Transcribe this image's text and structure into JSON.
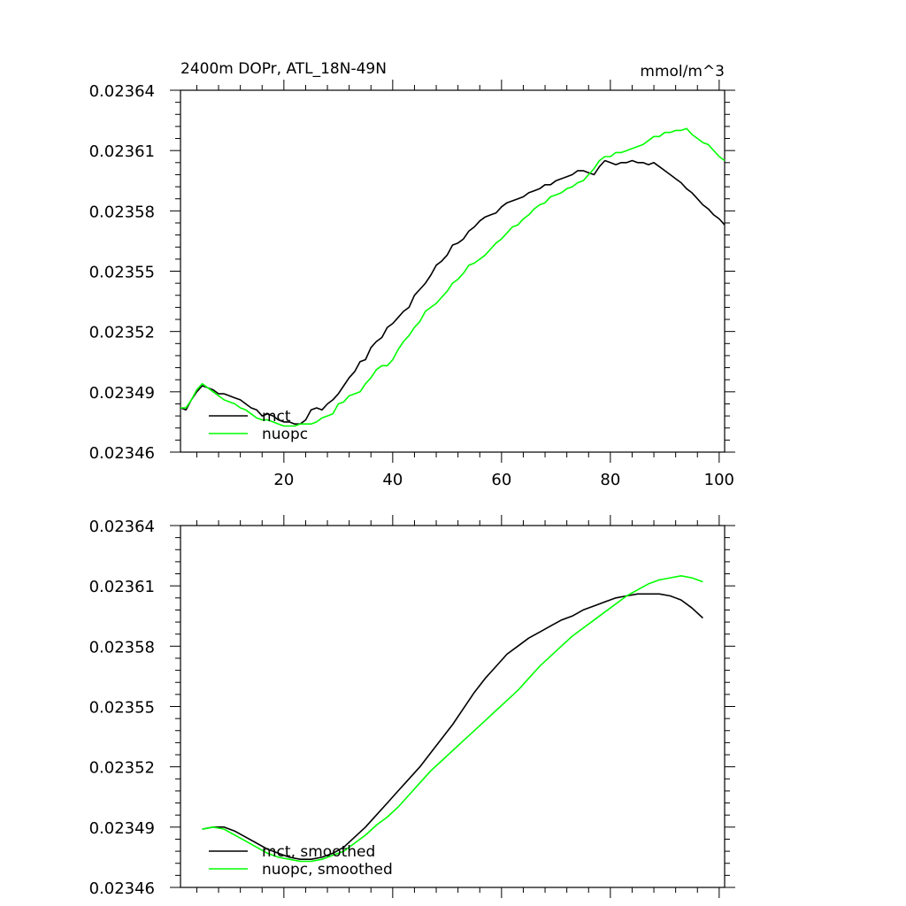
{
  "chart_data": [
    {
      "type": "line",
      "title_left": "2400m DOPr, ATL_18N-49N",
      "title_right": "mmol/m^3",
      "xlabel": "",
      "ylabel": "",
      "xlim": [
        1,
        101
      ],
      "ylim": [
        0.02346,
        0.02364
      ],
      "x_ticks": [
        20,
        40,
        60,
        80,
        100
      ],
      "x_tick_labels": [
        "20",
        "40",
        "60",
        "80",
        "100"
      ],
      "y_ticks": [
        0.02346,
        0.02349,
        0.02352,
        0.02355,
        0.02358,
        0.02361,
        0.02364
      ],
      "y_tick_labels": [
        "0.02346",
        "0.02349",
        "0.02352",
        "0.02355",
        "0.02358",
        "0.02361",
        "0.02364"
      ],
      "legend_position": "bottom-left",
      "series": [
        {
          "name": "mct",
          "color": "#000000",
          "x": [
            1,
            2,
            3,
            4,
            5,
            6,
            7,
            8,
            9,
            10,
            11,
            12,
            13,
            14,
            15,
            16,
            17,
            18,
            19,
            20,
            21,
            22,
            23,
            24,
            25,
            26,
            27,
            28,
            29,
            30,
            31,
            32,
            33,
            34,
            35,
            36,
            37,
            38,
            39,
            40,
            41,
            42,
            43,
            44,
            45,
            46,
            47,
            48,
            49,
            50,
            51,
            52,
            53,
            54,
            55,
            56,
            57,
            58,
            59,
            60,
            61,
            62,
            63,
            64,
            65,
            66,
            67,
            68,
            69,
            70,
            71,
            72,
            73,
            74,
            75,
            76,
            77,
            78,
            79,
            80,
            81,
            82,
            83,
            84,
            85,
            86,
            87,
            88,
            89,
            90,
            91,
            92,
            93,
            94,
            95,
            96,
            97,
            98,
            99,
            100,
            101
          ],
          "y": [
            0.023482,
            0.023481,
            0.023486,
            0.02349,
            0.023493,
            0.023492,
            0.023491,
            0.023489,
            0.023489,
            0.023488,
            0.023487,
            0.023486,
            0.023484,
            0.023482,
            0.023481,
            0.023478,
            0.023479,
            0.023478,
            0.023476,
            0.023475,
            0.023475,
            0.023474,
            0.023474,
            0.023476,
            0.023481,
            0.023482,
            0.023481,
            0.023484,
            0.023486,
            0.023489,
            0.023493,
            0.023497,
            0.0235,
            0.023505,
            0.023506,
            0.023512,
            0.023515,
            0.023517,
            0.023522,
            0.023524,
            0.023527,
            0.02353,
            0.023532,
            0.023538,
            0.023541,
            0.023544,
            0.023548,
            0.023553,
            0.023555,
            0.023558,
            0.023563,
            0.023564,
            0.023566,
            0.02357,
            0.023572,
            0.023575,
            0.023577,
            0.023578,
            0.023579,
            0.023582,
            0.023584,
            0.023585,
            0.023586,
            0.023587,
            0.023589,
            0.02359,
            0.023591,
            0.023593,
            0.023593,
            0.023595,
            0.023596,
            0.023597,
            0.023598,
            0.0236,
            0.0236,
            0.023599,
            0.023598,
            0.023602,
            0.023605,
            0.023604,
            0.023603,
            0.023604,
            0.023604,
            0.023605,
            0.023604,
            0.023604,
            0.023603,
            0.023604,
            0.023602,
            0.0236,
            0.023598,
            0.023596,
            0.023594,
            0.023591,
            0.023589,
            0.023586,
            0.023583,
            0.023581,
            0.023578,
            0.023576,
            0.023573
          ]
        },
        {
          "name": "nuopc",
          "color": "#00ff00",
          "x": [
            1,
            2,
            3,
            4,
            5,
            6,
            7,
            8,
            9,
            10,
            11,
            12,
            13,
            14,
            15,
            16,
            17,
            18,
            19,
            20,
            21,
            22,
            23,
            24,
            25,
            26,
            27,
            28,
            29,
            30,
            31,
            32,
            33,
            34,
            35,
            36,
            37,
            38,
            39,
            40,
            41,
            42,
            43,
            44,
            45,
            46,
            47,
            48,
            49,
            50,
            51,
            52,
            53,
            54,
            55,
            56,
            57,
            58,
            59,
            60,
            61,
            62,
            63,
            64,
            65,
            66,
            67,
            68,
            69,
            70,
            71,
            72,
            73,
            74,
            75,
            76,
            77,
            78,
            79,
            80,
            81,
            82,
            83,
            84,
            85,
            86,
            87,
            88,
            89,
            90,
            91,
            92,
            93,
            94,
            95,
            96,
            97,
            98,
            99,
            100,
            101
          ],
          "y": [
            0.023482,
            0.023482,
            0.023486,
            0.023491,
            0.023494,
            0.023492,
            0.02349,
            0.023488,
            0.023486,
            0.023485,
            0.023484,
            0.023482,
            0.023481,
            0.023479,
            0.023477,
            0.023476,
            0.023476,
            0.023475,
            0.023474,
            0.023473,
            0.023473,
            0.023473,
            0.023474,
            0.023474,
            0.023474,
            0.023475,
            0.023477,
            0.023478,
            0.023479,
            0.023484,
            0.023485,
            0.023488,
            0.023489,
            0.02349,
            0.023494,
            0.023497,
            0.023501,
            0.023503,
            0.023503,
            0.023506,
            0.023511,
            0.023515,
            0.023518,
            0.023522,
            0.023525,
            0.02353,
            0.023532,
            0.023534,
            0.023537,
            0.02354,
            0.023544,
            0.023546,
            0.023549,
            0.023553,
            0.023554,
            0.023556,
            0.023558,
            0.023561,
            0.023564,
            0.023566,
            0.023569,
            0.023572,
            0.023573,
            0.023576,
            0.023578,
            0.023581,
            0.023583,
            0.023584,
            0.023587,
            0.023588,
            0.023589,
            0.023591,
            0.023592,
            0.023594,
            0.023595,
            0.023598,
            0.023601,
            0.023605,
            0.023607,
            0.023607,
            0.023609,
            0.023609,
            0.02361,
            0.023611,
            0.023612,
            0.023613,
            0.023615,
            0.023617,
            0.023617,
            0.023619,
            0.023619,
            0.02362,
            0.02362,
            0.023621,
            0.023618,
            0.023616,
            0.023614,
            0.023613,
            0.02361,
            0.023607,
            0.023605
          ]
        }
      ]
    },
    {
      "type": "line",
      "title_left": "",
      "title_right": "",
      "xlabel": "",
      "ylabel": "",
      "xlim": [
        1,
        101
      ],
      "ylim": [
        0.02346,
        0.02364
      ],
      "x_ticks": [
        20,
        40,
        60,
        80,
        100
      ],
      "x_tick_labels": [],
      "y_ticks": [
        0.02346,
        0.02349,
        0.02352,
        0.02355,
        0.02358,
        0.02361,
        0.02364
      ],
      "y_tick_labels": [
        "0.02346",
        "0.02349",
        "0.02352",
        "0.02355",
        "0.02358",
        "0.02361",
        "0.02364"
      ],
      "legend_position": "bottom-left",
      "series": [
        {
          "name": "mct, smoothed",
          "color": "#000000",
          "x": [
            5,
            7,
            9,
            11,
            13,
            15,
            17,
            19,
            21,
            23,
            25,
            27,
            29,
            31,
            33,
            35,
            37,
            39,
            41,
            43,
            45,
            47,
            49,
            51,
            53,
            55,
            57,
            59,
            61,
            63,
            65,
            67,
            69,
            71,
            73,
            75,
            77,
            79,
            81,
            83,
            85,
            87,
            89,
            91,
            93,
            95,
            97
          ],
          "y": [
            0.023489,
            0.02349,
            0.02349,
            0.023488,
            0.023485,
            0.023482,
            0.023479,
            0.023477,
            0.023475,
            0.023474,
            0.023474,
            0.023475,
            0.023477,
            0.02348,
            0.023485,
            0.02349,
            0.023496,
            0.023502,
            0.023508,
            0.023514,
            0.02352,
            0.023527,
            0.023534,
            0.023541,
            0.023549,
            0.023557,
            0.023564,
            0.02357,
            0.023576,
            0.02358,
            0.023584,
            0.023587,
            0.02359,
            0.023593,
            0.023595,
            0.023598,
            0.0236,
            0.023602,
            0.023604,
            0.023605,
            0.023606,
            0.023606,
            0.023606,
            0.023605,
            0.023603,
            0.023599,
            0.023594
          ]
        },
        {
          "name": "nuopc, smoothed",
          "color": "#00ff00",
          "x": [
            5,
            7,
            9,
            11,
            13,
            15,
            17,
            19,
            21,
            23,
            25,
            27,
            29,
            31,
            33,
            35,
            37,
            39,
            41,
            43,
            45,
            47,
            49,
            51,
            53,
            55,
            57,
            59,
            61,
            63,
            65,
            67,
            69,
            71,
            73,
            75,
            77,
            79,
            81,
            83,
            85,
            87,
            89,
            91,
            93,
            95,
            97
          ],
          "y": [
            0.023489,
            0.02349,
            0.023489,
            0.023486,
            0.023483,
            0.02348,
            0.023477,
            0.023475,
            0.023474,
            0.023473,
            0.023473,
            0.023474,
            0.023476,
            0.023478,
            0.023482,
            0.023486,
            0.023491,
            0.023495,
            0.0235,
            0.023506,
            0.023512,
            0.023518,
            0.023523,
            0.023528,
            0.023533,
            0.023538,
            0.023543,
            0.023548,
            0.023553,
            0.023558,
            0.023564,
            0.02357,
            0.023575,
            0.02358,
            0.023585,
            0.023589,
            0.023593,
            0.023597,
            0.023601,
            0.023605,
            0.023608,
            0.023611,
            0.023613,
            0.023614,
            0.023615,
            0.023614,
            0.023612
          ]
        }
      ]
    }
  ]
}
